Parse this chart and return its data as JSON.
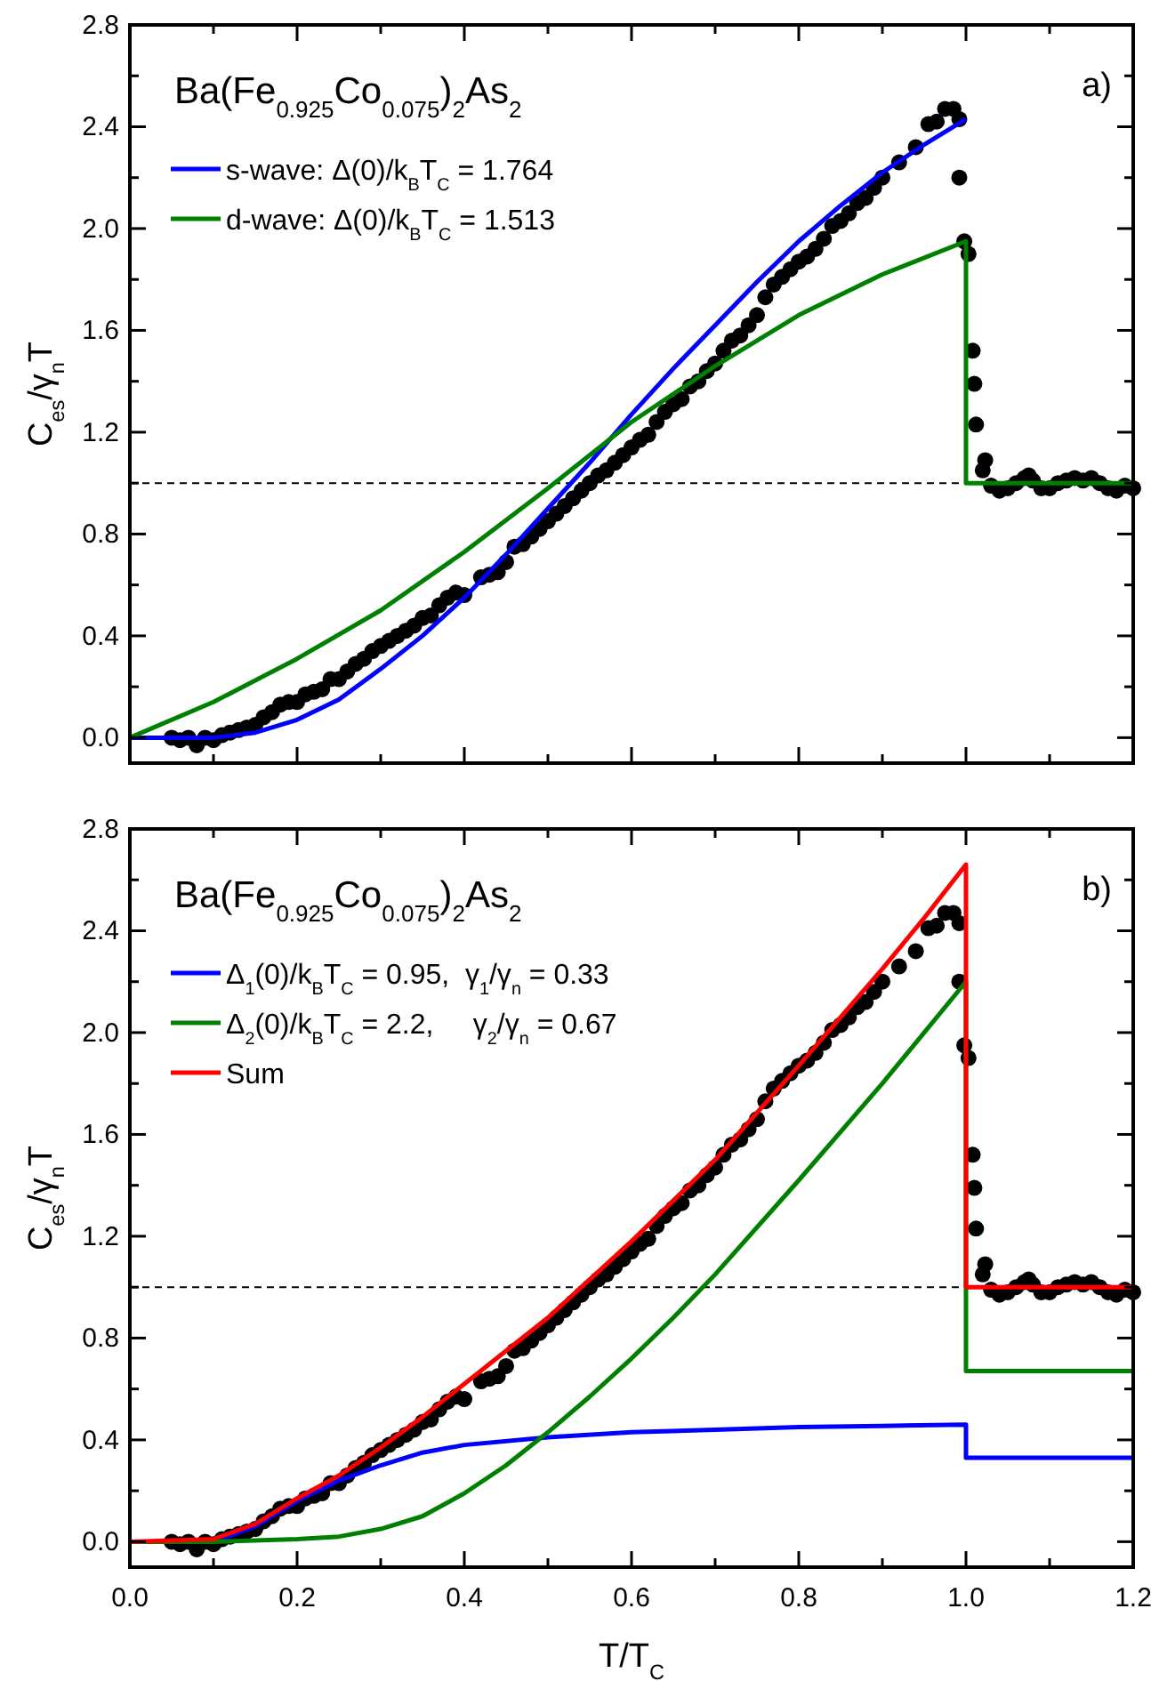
{
  "chart_data": [
    {
      "type": "line",
      "xlim": [
        0,
        1.2
      ],
      "ylim": [
        -0.1,
        2.8
      ],
      "xticks": [
        0,
        {
          "value": 0.1,
          "label": null
        },
        0.2,
        {
          "value": 0.3,
          "label": null
        },
        0.4,
        {
          "value": 0.5,
          "label": null
        },
        0.6,
        {
          "value": 0.7,
          "label": null
        },
        0.8,
        {
          "value": 0.9,
          "label": null
        },
        1,
        {
          "value": 1.1,
          "label": null
        },
        1.2
      ],
      "yticks": [
        {
          "value": 0,
          "label": "0.0"
        },
        {
          "value": 0.2,
          "label": null
        },
        {
          "value": 0.4,
          "label": "0.4"
        },
        {
          "value": 0.6,
          "label": null
        },
        {
          "value": 0.8,
          "label": "0.8"
        },
        {
          "value": 1,
          "label": null
        },
        {
          "value": 1.2,
          "label": "1.2"
        },
        {
          "value": 1.4,
          "label": null
        },
        {
          "value": 1.6,
          "label": "1.6"
        },
        {
          "value": 1.8,
          "label": null
        },
        {
          "value": 2,
          "label": "2.0"
        },
        {
          "value": 2.2,
          "label": null
        },
        {
          "value": 2.4,
          "label": "2.4"
        },
        {
          "value": 2.6,
          "label": null
        },
        {
          "value": 2.8,
          "label": "2.8"
        }
      ],
      "tick_labels": "y",
      "ylabel": "C$_{es}$/γ$_{n}$T",
      "legend": "top left",
      "grid": false,
      "annotations": [
        "Ba(Fe$_{0.925}$Co$_{0.075}$)$_{2}$As$_{2}$",
        "a)"
      ],
      "ref_lines": [
        {
          "axis": "y",
          "value": 1,
          "color": "#000000",
          "line_style": "dashed"
        }
      ],
      "series": [
        {
          "type": "scatter",
          "marker": "circle",
          "color": "#000000",
          "x": [
            0.05,
            0.06,
            0.07,
            0.08,
            0.09,
            0.1,
            0.11,
            0.12,
            0.13,
            0.14,
            0.15,
            0.16,
            0.17,
            0.18,
            0.19,
            0.2,
            0.21,
            0.22,
            0.23,
            0.24,
            0.25,
            0.26,
            0.27,
            0.28,
            0.29,
            0.3,
            0.31,
            0.32,
            0.33,
            0.34,
            0.35,
            0.36,
            0.37,
            0.38,
            0.39,
            0.4,
            0.42,
            0.43,
            0.44,
            0.45,
            0.46,
            0.47,
            0.48,
            0.49,
            0.5,
            0.51,
            0.52,
            0.53,
            0.54,
            0.55,
            0.56,
            0.57,
            0.58,
            0.59,
            0.6,
            0.61,
            0.62,
            0.63,
            0.64,
            0.65,
            0.66,
            0.67,
            0.68,
            0.69,
            0.7,
            0.71,
            0.72,
            0.73,
            0.74,
            0.75,
            0.76,
            0.77,
            0.78,
            0.79,
            0.8,
            0.81,
            0.82,
            0.83,
            0.84,
            0.85,
            0.86,
            0.87,
            0.88,
            0.89,
            0.9,
            0.92,
            0.94,
            0.955,
            0.965,
            0.975,
            0.985,
            0.992,
            0.992,
            0.998,
            1.003,
            1.008,
            1.01,
            1.012,
            1.02,
            1.023,
            1.03,
            1.04,
            1.05,
            1.06,
            1.07,
            1.075,
            1.08,
            1.09,
            1.1,
            1.11,
            1.12,
            1.13,
            1.14,
            1.15,
            1.16,
            1.17,
            1.18,
            1.19,
            1.2
          ],
          "values": [
            0,
            -0.01,
            0,
            -0.03,
            0,
            -0.01,
            0.01,
            0.02,
            0.03,
            0.04,
            0.05,
            0.08,
            0.1,
            0.13,
            0.14,
            0.14,
            0.17,
            0.18,
            0.19,
            0.23,
            0.23,
            0.26,
            0.29,
            0.31,
            0.34,
            0.36,
            0.38,
            0.4,
            0.42,
            0.44,
            0.47,
            0.48,
            0.52,
            0.55,
            0.57,
            0.56,
            0.63,
            0.64,
            0.65,
            0.69,
            0.75,
            0.76,
            0.79,
            0.82,
            0.85,
            0.88,
            0.91,
            0.94,
            0.97,
            1,
            1.03,
            1.05,
            1.08,
            1.11,
            1.14,
            1.17,
            1.19,
            1.24,
            1.28,
            1.31,
            1.33,
            1.38,
            1.4,
            1.44,
            1.47,
            1.52,
            1.56,
            1.58,
            1.62,
            1.66,
            1.73,
            1.78,
            1.81,
            1.84,
            1.87,
            1.89,
            1.92,
            1.96,
            2.01,
            2.03,
            2.06,
            2.1,
            2.12,
            2.16,
            2.2,
            2.26,
            2.32,
            2.41,
            2.42,
            2.47,
            2.47,
            2.43,
            2.2,
            1.95,
            1.9,
            1.52,
            1.39,
            1.23,
            1.05,
            1.09,
            0.99,
            0.97,
            0.98,
            1,
            1.02,
            1.03,
            1.01,
            0.98,
            0.98,
            1,
            1.01,
            1.02,
            1.01,
            1.02,
            1,
            0.98,
            0.97,
            0.99,
            0.98
          ]
        },
        {
          "type": "line",
          "name": "s-wave: Δ(0)/k$_{B}$T$_{C}$ = 1.764",
          "color": "#0000ff",
          "x": [
            0,
            0.1,
            0.15,
            0.2,
            0.25,
            0.3,
            0.35,
            0.4,
            0.45,
            0.5,
            0.55,
            0.6,
            0.65,
            0.7,
            0.75,
            0.8,
            0.85,
            0.9,
            0.95,
            1
          ],
          "values": [
            0,
            0,
            0.02,
            0.07,
            0.15,
            0.27,
            0.4,
            0.55,
            0.72,
            0.9,
            1.08,
            1.27,
            1.45,
            1.62,
            1.79,
            1.95,
            2.09,
            2.22,
            2.33,
            2.43
          ]
        },
        {
          "type": "line",
          "name": "d-wave: Δ(0)/k$_{B}$T$_{C}$ = 1.513",
          "color": "#008000",
          "x": [
            0,
            0.1,
            0.2,
            0.3,
            0.4,
            0.5,
            0.6,
            0.7,
            0.8,
            0.9,
            1,
            1,
            1.2
          ],
          "values": [
            0,
            0.14,
            0.31,
            0.5,
            0.73,
            0.98,
            1.24,
            1.46,
            1.66,
            1.82,
            1.95,
            1,
            1
          ]
        }
      ]
    },
    {
      "type": "line",
      "xlim": [
        0,
        1.2
      ],
      "ylim": [
        -0.1,
        2.8
      ],
      "xticks": [
        {
          "value": 0,
          "label": "0.0"
        },
        {
          "value": 0.1,
          "label": null
        },
        {
          "value": 0.2,
          "label": "0.2"
        },
        {
          "value": 0.3,
          "label": null
        },
        {
          "value": 0.4,
          "label": "0.4"
        },
        {
          "value": 0.5,
          "label": null
        },
        {
          "value": 0.6,
          "label": "0.6"
        },
        {
          "value": 0.7,
          "label": null
        },
        {
          "value": 0.8,
          "label": "0.8"
        },
        {
          "value": 0.9,
          "label": null
        },
        {
          "value": 1,
          "label": "1.0"
        },
        {
          "value": 1.1,
          "label": null
        },
        {
          "value": 1.2,
          "label": "1.2"
        }
      ],
      "yticks": [
        {
          "value": 0,
          "label": "0.0"
        },
        {
          "value": 0.2,
          "label": null
        },
        {
          "value": 0.4,
          "label": "0.4"
        },
        {
          "value": 0.6,
          "label": null
        },
        {
          "value": 0.8,
          "label": "0.8"
        },
        {
          "value": 1,
          "label": null
        },
        {
          "value": 1.2,
          "label": "1.2"
        },
        {
          "value": 1.4,
          "label": null
        },
        {
          "value": 1.6,
          "label": "1.6"
        },
        {
          "value": 1.8,
          "label": null
        },
        {
          "value": 2,
          "label": "2.0"
        },
        {
          "value": 2.2,
          "label": null
        },
        {
          "value": 2.4,
          "label": "2.4"
        },
        {
          "value": 2.6,
          "label": null
        },
        {
          "value": 2.8,
          "label": "2.8"
        }
      ],
      "xlabel": "T/T$_{C}$",
      "ylabel": "C$_{es}$/γ$_{n}$T",
      "legend": "top left",
      "grid": false,
      "annotations": [
        "Ba(Fe$_{0.925}$Co$_{0.075}$)$_{2}$As$_{2}$",
        "b)"
      ],
      "ref_lines": [
        {
          "axis": "y",
          "value": 1,
          "color": "#000000",
          "line_style": "dashed"
        }
      ],
      "series": [
        {
          "type": "scatter",
          "marker": "circle",
          "color": "#000000",
          "x": [
            0.05,
            0.06,
            0.07,
            0.08,
            0.09,
            0.1,
            0.11,
            0.12,
            0.13,
            0.14,
            0.15,
            0.16,
            0.17,
            0.18,
            0.19,
            0.2,
            0.21,
            0.22,
            0.23,
            0.24,
            0.25,
            0.26,
            0.27,
            0.28,
            0.29,
            0.3,
            0.31,
            0.32,
            0.33,
            0.34,
            0.35,
            0.36,
            0.37,
            0.38,
            0.39,
            0.4,
            0.42,
            0.43,
            0.44,
            0.45,
            0.46,
            0.47,
            0.48,
            0.49,
            0.5,
            0.51,
            0.52,
            0.53,
            0.54,
            0.55,
            0.56,
            0.57,
            0.58,
            0.59,
            0.6,
            0.61,
            0.62,
            0.63,
            0.64,
            0.65,
            0.66,
            0.67,
            0.68,
            0.69,
            0.7,
            0.71,
            0.72,
            0.73,
            0.74,
            0.75,
            0.76,
            0.77,
            0.78,
            0.79,
            0.8,
            0.81,
            0.82,
            0.83,
            0.84,
            0.85,
            0.86,
            0.87,
            0.88,
            0.89,
            0.9,
            0.92,
            0.94,
            0.955,
            0.965,
            0.975,
            0.985,
            0.992,
            0.992,
            0.998,
            1.003,
            1.008,
            1.01,
            1.012,
            1.02,
            1.023,
            1.03,
            1.04,
            1.05,
            1.06,
            1.07,
            1.075,
            1.08,
            1.09,
            1.1,
            1.11,
            1.12,
            1.13,
            1.14,
            1.15,
            1.16,
            1.17,
            1.18,
            1.19,
            1.2
          ],
          "values": [
            0,
            -0.01,
            0,
            -0.03,
            0,
            -0.01,
            0.01,
            0.02,
            0.03,
            0.04,
            0.05,
            0.08,
            0.1,
            0.13,
            0.14,
            0.14,
            0.17,
            0.18,
            0.19,
            0.23,
            0.23,
            0.26,
            0.29,
            0.31,
            0.34,
            0.36,
            0.38,
            0.4,
            0.42,
            0.44,
            0.47,
            0.48,
            0.52,
            0.55,
            0.57,
            0.56,
            0.63,
            0.64,
            0.65,
            0.69,
            0.75,
            0.76,
            0.79,
            0.82,
            0.85,
            0.88,
            0.91,
            0.94,
            0.97,
            1,
            1.03,
            1.05,
            1.08,
            1.11,
            1.14,
            1.17,
            1.19,
            1.24,
            1.28,
            1.31,
            1.33,
            1.38,
            1.4,
            1.44,
            1.47,
            1.52,
            1.56,
            1.58,
            1.62,
            1.66,
            1.73,
            1.78,
            1.81,
            1.84,
            1.87,
            1.89,
            1.92,
            1.96,
            2.01,
            2.03,
            2.06,
            2.1,
            2.12,
            2.16,
            2.2,
            2.26,
            2.32,
            2.41,
            2.42,
            2.47,
            2.47,
            2.43,
            2.2,
            1.95,
            1.9,
            1.52,
            1.39,
            1.23,
            1.05,
            1.09,
            0.99,
            0.97,
            0.98,
            1,
            1.02,
            1.03,
            1.01,
            0.98,
            0.98,
            1,
            1.01,
            1.02,
            1.01,
            1.02,
            1,
            0.98,
            0.97,
            0.99,
            0.98
          ]
        },
        {
          "type": "line",
          "name": "Δ$_{1}$(0)/k$_{B}$T$_{C}$ = 0.95,  γ$_{1}$/γ$_{n}$ = 0.33",
          "color": "#0000ff",
          "x": [
            0,
            0.1,
            0.15,
            0.2,
            0.25,
            0.3,
            0.35,
            0.4,
            0.5,
            0.6,
            0.7,
            0.8,
            0.9,
            1,
            1,
            1.2
          ],
          "values": [
            0,
            0,
            0.06,
            0.16,
            0.24,
            0.3,
            0.35,
            0.38,
            0.41,
            0.43,
            0.44,
            0.45,
            0.455,
            0.46,
            0.33,
            0.33
          ]
        },
        {
          "type": "line",
          "name": "Δ$_{2}$(0)/k$_{B}$T$_{C}$ = 2.2,     γ$_{2}$/γ$_{n}$ = 0.67",
          "color": "#008000",
          "x": [
            0,
            0.1,
            0.2,
            0.25,
            0.3,
            0.35,
            0.4,
            0.45,
            0.5,
            0.55,
            0.6,
            0.65,
            0.7,
            0.8,
            0.9,
            1,
            1,
            1.2
          ],
          "values": [
            0,
            0,
            0.01,
            0.02,
            0.05,
            0.1,
            0.19,
            0.3,
            0.43,
            0.57,
            0.72,
            0.88,
            1.05,
            1.42,
            1.8,
            2.2,
            0.67,
            0.67
          ]
        },
        {
          "type": "line",
          "name": "Sum",
          "color": "#ff0000",
          "x": [
            0,
            0.1,
            0.15,
            0.2,
            0.25,
            0.3,
            0.35,
            0.4,
            0.45,
            0.5,
            0.6,
            0.7,
            0.8,
            0.9,
            0.95,
            1,
            1,
            1.2
          ],
          "values": [
            0,
            0.01,
            0.07,
            0.17,
            0.26,
            0.37,
            0.49,
            0.62,
            0.75,
            0.88,
            1.18,
            1.5,
            1.87,
            2.25,
            2.45,
            2.66,
            1,
            1
          ]
        }
      ]
    }
  ]
}
